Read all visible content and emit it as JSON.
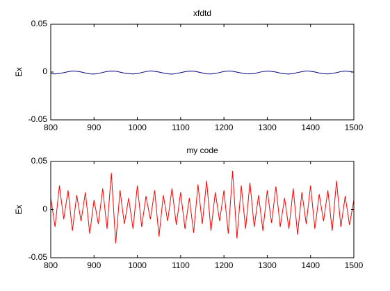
{
  "chart_data": [
    {
      "type": "line",
      "title": "xfdtd",
      "y_label": "Ex",
      "x": [
        800,
        810,
        820,
        830,
        840,
        850,
        860,
        870,
        880,
        890,
        900,
        910,
        920,
        930,
        940,
        950,
        960,
        970,
        980,
        990,
        1000,
        1010,
        1020,
        1030,
        1040,
        1050,
        1060,
        1070,
        1080,
        1090,
        1100,
        1110,
        1120,
        1130,
        1140,
        1150,
        1160,
        1170,
        1180,
        1190,
        1200,
        1210,
        1220,
        1230,
        1240,
        1250,
        1260,
        1270,
        1280,
        1290,
        1300,
        1310,
        1320,
        1330,
        1340,
        1350,
        1360,
        1370,
        1380,
        1390,
        1400,
        1410,
        1420,
        1430,
        1440,
        1450,
        1460,
        1470,
        1480,
        1490,
        1500
      ],
      "series": [
        {
          "name": "xfdtd",
          "color": "#000080",
          "values": [
            -0.0018,
            -0.002,
            -0.0014,
            -0.0006,
            0.0004,
            0.0011,
            0.0008,
            0.0001,
            -0.001,
            -0.0019,
            -0.0021,
            -0.0015,
            -0.0004,
            0.0006,
            0.001,
            0.0009,
            -0.0001,
            -0.0011,
            -0.0017,
            -0.002,
            -0.0016,
            -0.0005,
            0.0005,
            0.0012,
            0.0007,
            0,
            -0.001,
            -0.0018,
            -0.0022,
            -0.0015,
            -0.0006,
            0.0004,
            0.001,
            0.0009,
            0.0001,
            -0.0009,
            -0.0019,
            -0.002,
            -0.0014,
            -0.0005,
            0.0006,
            0.0011,
            0.0008,
            -0.0001,
            -0.001,
            -0.0018,
            -0.0019,
            -0.0016,
            -0.0004,
            0.0005,
            0.001,
            0.0007,
            0,
            -0.0011,
            -0.0018,
            -0.0021,
            -0.0015,
            -0.0005,
            0.0004,
            0.0012,
            0.0008,
            0.0001,
            -0.001,
            -0.0017,
            -0.002,
            -0.0014,
            -0.0006,
            0.0005,
            0.001,
            0.0006,
            -0.0001
          ]
        }
      ],
      "xlim": [
        800,
        1500
      ],
      "xticks": [
        800,
        900,
        1000,
        1100,
        1200,
        1300,
        1400,
        1500
      ],
      "ylim": [
        -0.05,
        0.05
      ],
      "yticks": [
        -0.05,
        0,
        0.05
      ]
    },
    {
      "type": "line",
      "title": "my code",
      "y_label": "Ex",
      "x": [
        800,
        810,
        820,
        830,
        840,
        850,
        860,
        870,
        880,
        890,
        900,
        910,
        920,
        930,
        940,
        950,
        960,
        970,
        980,
        990,
        1000,
        1010,
        1020,
        1030,
        1040,
        1050,
        1060,
        1070,
        1080,
        1090,
        1100,
        1110,
        1120,
        1130,
        1140,
        1150,
        1160,
        1170,
        1180,
        1190,
        1200,
        1210,
        1220,
        1230,
        1240,
        1250,
        1260,
        1270,
        1280,
        1290,
        1300,
        1310,
        1320,
        1330,
        1340,
        1350,
        1360,
        1370,
        1380,
        1390,
        1400,
        1410,
        1420,
        1430,
        1440,
        1450,
        1460,
        1470,
        1480,
        1490,
        1500
      ],
      "series": [
        {
          "name": "my code",
          "color": "#ff0000",
          "values": [
            0.012,
            -0.018,
            0.025,
            -0.01,
            0.02,
            -0.022,
            0.015,
            -0.012,
            0.018,
            -0.025,
            0.01,
            -0.015,
            0.022,
            -0.02,
            0.038,
            -0.035,
            0.02,
            -0.015,
            0.012,
            -0.02,
            0.025,
            -0.018,
            0.014,
            -0.01,
            0.02,
            -0.028,
            0.015,
            -0.012,
            0.022,
            -0.016,
            0.018,
            -0.02,
            0.012,
            -0.024,
            0.026,
            -0.015,
            0.03,
            -0.022,
            0.018,
            -0.012,
            0.02,
            -0.025,
            0.04,
            -0.03,
            0.025,
            -0.02,
            0.028,
            -0.018,
            0.015,
            -0.022,
            0.02,
            -0.014,
            0.024,
            -0.018,
            0.012,
            -0.02,
            0.022,
            -0.026,
            0.018,
            -0.015,
            0.025,
            -0.02,
            0.016,
            -0.012,
            0.02,
            -0.022,
            0.03,
            -0.018,
            0.014,
            -0.016,
            0.01
          ]
        }
      ],
      "xlim": [
        800,
        1500
      ],
      "xticks": [
        800,
        900,
        1000,
        1100,
        1200,
        1300,
        1400,
        1500
      ],
      "ylim": [
        -0.05,
        0.05
      ],
      "yticks": [
        -0.05,
        0,
        0.05
      ]
    }
  ]
}
